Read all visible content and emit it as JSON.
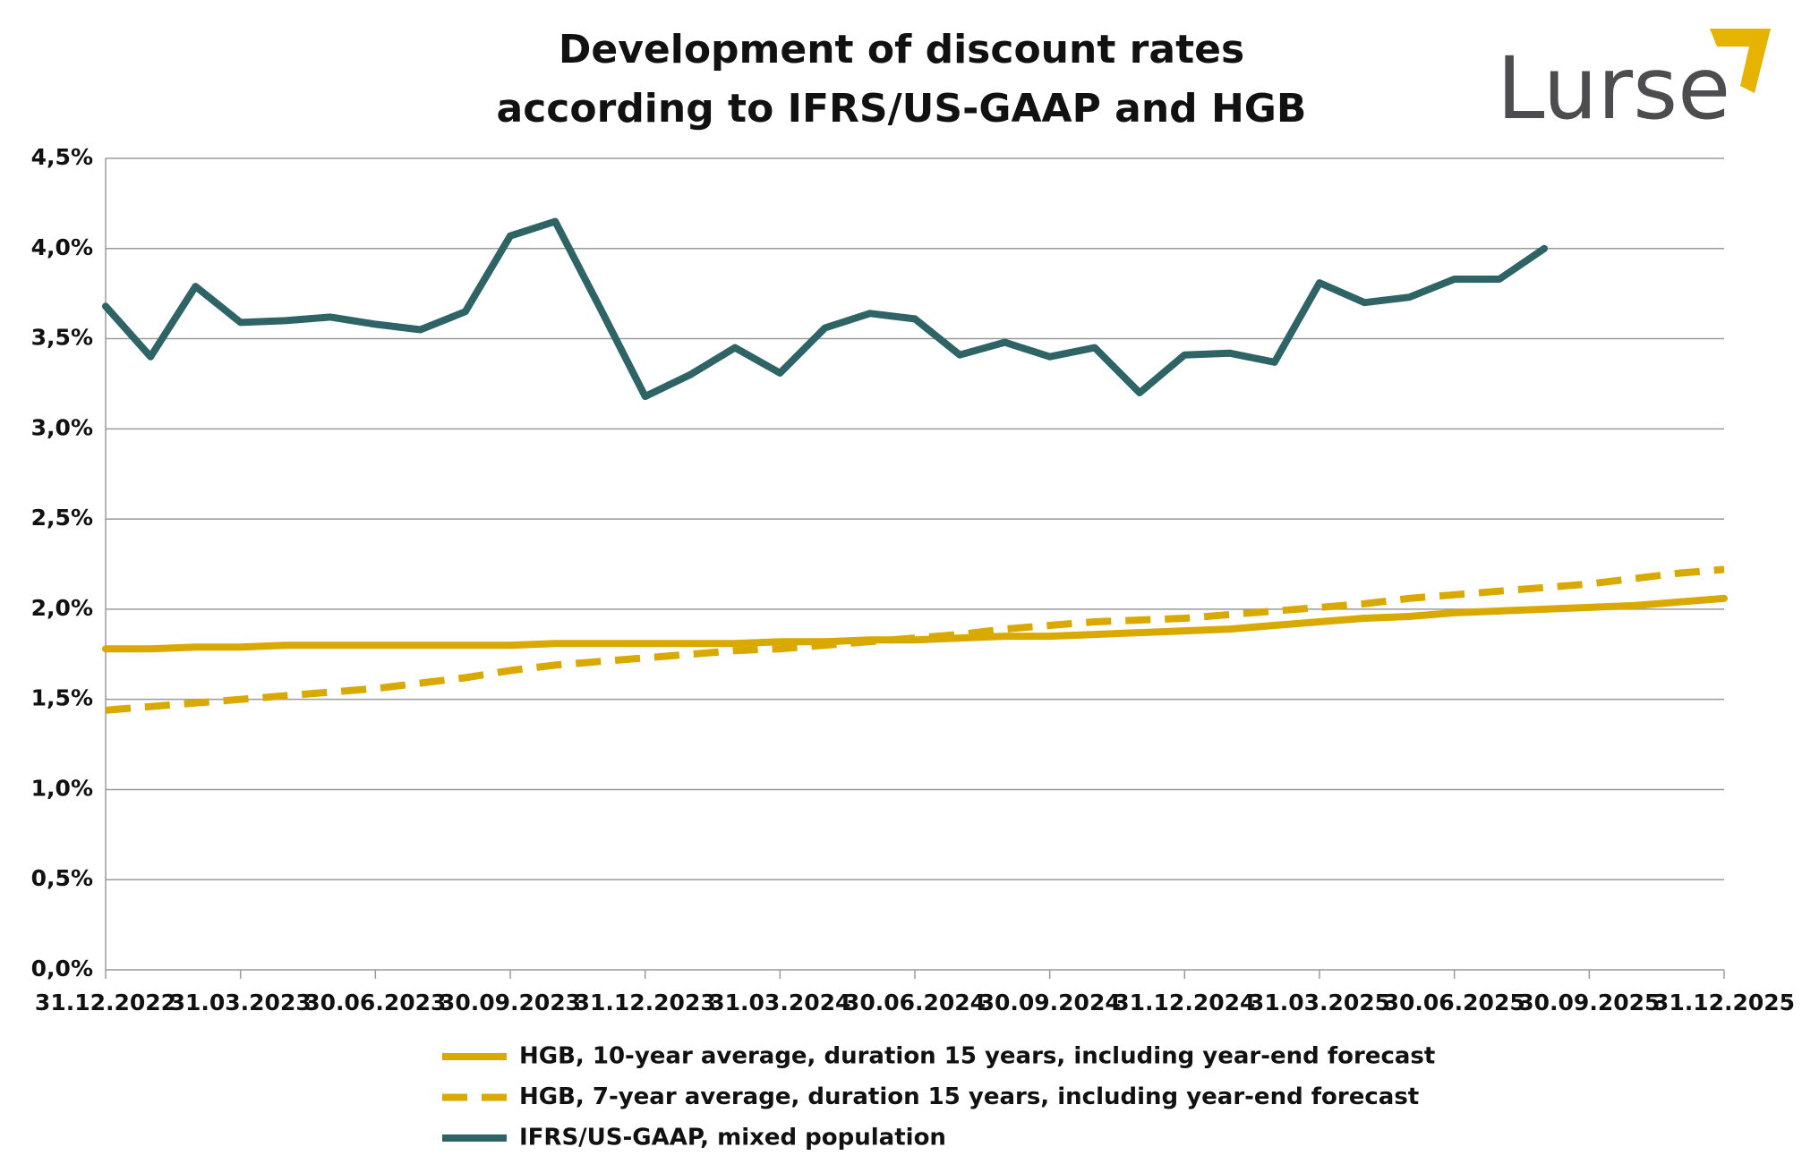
{
  "chart_data": {
    "type": "line",
    "title": [
      "Development of discount rates",
      "according to IFRS/US-GAAP and HGB"
    ],
    "logo": "Lurse",
    "categories": [
      "31.12.2022",
      null,
      null,
      "31.03.2023",
      null,
      null,
      "30.06.2023",
      null,
      null,
      "30.09.2023",
      null,
      null,
      "31.12.2023",
      null,
      null,
      "31.03.2024",
      null,
      null,
      "30.06.2024",
      null,
      null,
      "30.09.2024",
      null,
      null,
      "31.12.2024",
      null,
      null,
      "31.03.2025",
      null,
      null,
      "30.06.2025",
      null,
      null,
      "30.09.2025",
      null,
      null,
      "31.12.2025"
    ],
    "series": [
      {
        "name": "HGB, 10-year average, duration 15 years, including year-end forecast",
        "color": "#d9a900",
        "dashed": false,
        "values": [
          1.78,
          1.78,
          1.79,
          1.79,
          1.8,
          1.8,
          1.8,
          1.8,
          1.8,
          1.8,
          1.81,
          1.81,
          1.81,
          1.81,
          1.81,
          1.82,
          1.82,
          1.83,
          1.83,
          1.84,
          1.85,
          1.85,
          1.86,
          1.87,
          1.88,
          1.89,
          1.91,
          1.93,
          1.95,
          1.96,
          1.98,
          1.99,
          2.0,
          2.01,
          2.02,
          2.04,
          2.06
        ]
      },
      {
        "name": "HGB, 7-year average, duration 15 years, including year-end forecast",
        "color": "#d9a900",
        "dashed": true,
        "values": [
          1.44,
          1.46,
          1.48,
          1.5,
          1.52,
          1.54,
          1.56,
          1.59,
          1.62,
          1.66,
          1.69,
          1.71,
          1.73,
          1.75,
          1.77,
          1.78,
          1.8,
          1.82,
          1.84,
          1.86,
          1.89,
          1.91,
          1.93,
          1.94,
          1.95,
          1.97,
          1.99,
          2.01,
          2.03,
          2.06,
          2.08,
          2.1,
          2.12,
          2.14,
          2.17,
          2.2,
          2.22
        ]
      },
      {
        "name": "IFRS/US-GAAP, mixed population",
        "color": "#2e6466",
        "dashed": false,
        "values": [
          3.68,
          3.4,
          3.79,
          3.59,
          3.6,
          3.62,
          3.58,
          3.55,
          3.65,
          4.07,
          4.15,
          3.67,
          3.18,
          3.3,
          3.45,
          3.31,
          3.56,
          3.64,
          3.61,
          3.41,
          3.48,
          3.4,
          3.45,
          3.2,
          3.41,
          3.42,
          3.37,
          3.81,
          3.7,
          3.73,
          3.83,
          3.83,
          4.0,
          null,
          null,
          null,
          null
        ]
      }
    ],
    "ylim": [
      0,
      4.5
    ],
    "yticks": [
      {
        "value": 0,
        "label": "0,0%"
      },
      {
        "value": 0.5,
        "label": "0,5%"
      },
      {
        "value": 1,
        "label": "1,0%"
      },
      {
        "value": 1.5,
        "label": "1,5%"
      },
      {
        "value": 2,
        "label": "2,0%"
      },
      {
        "value": 2.5,
        "label": "2,5%"
      },
      {
        "value": 3,
        "label": "3,0%"
      },
      {
        "value": 3.5,
        "label": "3,5%"
      },
      {
        "value": 4,
        "label": "4,0%"
      },
      {
        "value": 4.5,
        "label": "4,5%"
      }
    ],
    "grid": true
  }
}
